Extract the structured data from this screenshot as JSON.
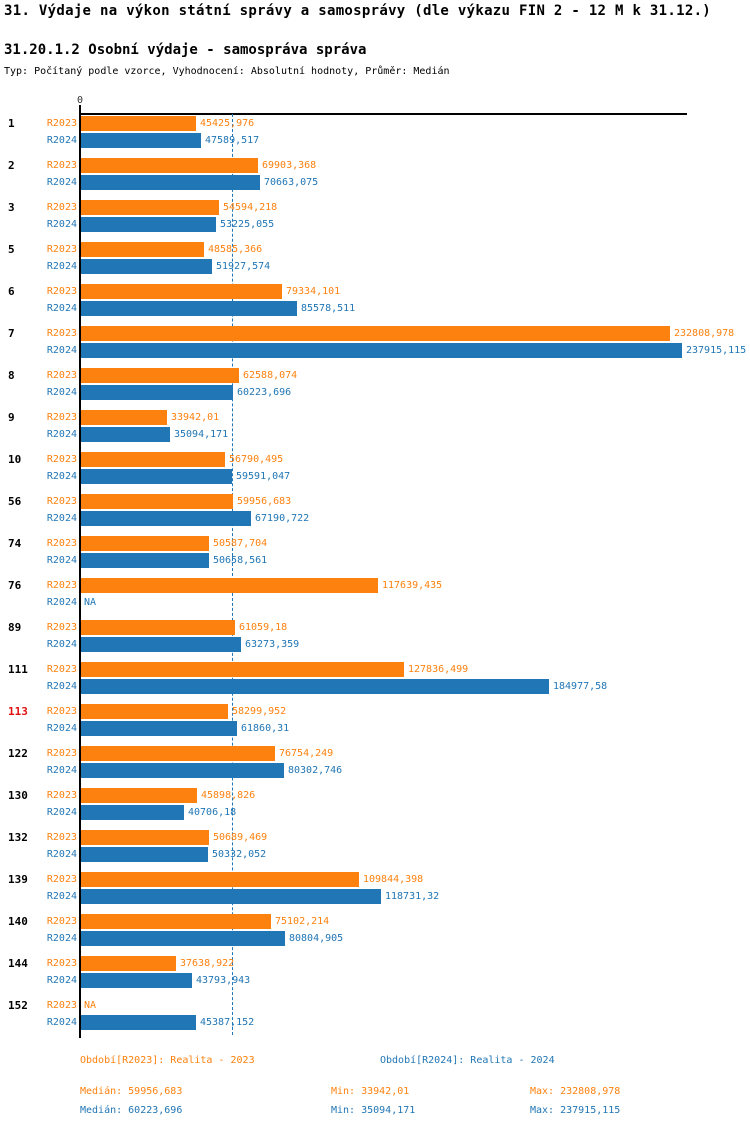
{
  "header": {
    "title": "31. Výdaje na výkon státní správy a samosprávy (dle výkazu FIN 2 - 12 M k 31.12.)",
    "subtitle": "31.20.1.2 Osobní výdaje - samospráva správa",
    "meta": "Typ: Počítaný podle vzorce, Vyhodnocení: Absolutní hodnoty, Průměr: Medián"
  },
  "colors": {
    "r2023_orange": "#fd810e",
    "r2024_blue": "#2176b5",
    "highlight_red": "#e01010",
    "axis_black": "#000000"
  },
  "chart_data": {
    "type": "bar",
    "orientation": "horizontal",
    "title": "31.20.1.2 Osobní výdaje - samospráva správa",
    "axis_zero_label": "0",
    "na_label": "NA",
    "series_labels": [
      "R2023",
      "R2024"
    ],
    "legend_position": "bottom",
    "xlim": [
      0,
      265000
    ],
    "median_line_value": 60223.696,
    "highlighted_category": "113",
    "categories": [
      "1",
      "2",
      "3",
      "5",
      "6",
      "7",
      "8",
      "9",
      "10",
      "56",
      "74",
      "76",
      "89",
      "111",
      "113",
      "122",
      "130",
      "132",
      "139",
      "140",
      "144",
      "152"
    ],
    "rows": [
      {
        "category": "1",
        "r2023": "45425,976",
        "r2024": "47589,517"
      },
      {
        "category": "2",
        "r2023": "69903,368",
        "r2024": "70663,075"
      },
      {
        "category": "3",
        "r2023": "54594,218",
        "r2024": "53225,055"
      },
      {
        "category": "5",
        "r2023": "48585,366",
        "r2024": "51927,574"
      },
      {
        "category": "6",
        "r2023": "79334,101",
        "r2024": "85578,511"
      },
      {
        "category": "7",
        "r2023": "232808,978",
        "r2024": "237915,115"
      },
      {
        "category": "8",
        "r2023": "62588,074",
        "r2024": "60223,696"
      },
      {
        "category": "9",
        "r2023": "33942,01",
        "r2024": "35094,171"
      },
      {
        "category": "10",
        "r2023": "56790,495",
        "r2024": "59591,047"
      },
      {
        "category": "56",
        "r2023": "59956,683",
        "r2024": "67190,722"
      },
      {
        "category": "74",
        "r2023": "50587,704",
        "r2024": "50658,561"
      },
      {
        "category": "76",
        "r2023": "117639,435",
        "r2024": "NA"
      },
      {
        "category": "89",
        "r2023": "61059,18",
        "r2024": "63273,359"
      },
      {
        "category": "111",
        "r2023": "127836,499",
        "r2024": "184977,58"
      },
      {
        "category": "113",
        "r2023": "58299,952",
        "r2024": "61860,31"
      },
      {
        "category": "122",
        "r2023": "76754,249",
        "r2024": "80302,746"
      },
      {
        "category": "130",
        "r2023": "45898,826",
        "r2024": "40706,18"
      },
      {
        "category": "132",
        "r2023": "50689,469",
        "r2024": "50332,052"
      },
      {
        "category": "139",
        "r2023": "109844,398",
        "r2024": "118731,32"
      },
      {
        "category": "140",
        "r2023": "75102,214",
        "r2024": "80804,905"
      },
      {
        "category": "144",
        "r2023": "37638,922",
        "r2024": "43793,943"
      },
      {
        "category": "152",
        "r2023": "NA",
        "r2024": "45387,152"
      }
    ]
  },
  "footer": {
    "period_2023": "Období[R2023]: Realita - 2023",
    "period_2024": "Období[R2024]: Realita - 2024",
    "stats_2023": {
      "median": "Medián: 59956,683",
      "min": "Min: 33942,01",
      "max": "Max: 232808,978"
    },
    "stats_2024": {
      "median": "Medián: 60223,696",
      "min": "Min: 35094,171",
      "max": "Max: 237915,115"
    }
  }
}
